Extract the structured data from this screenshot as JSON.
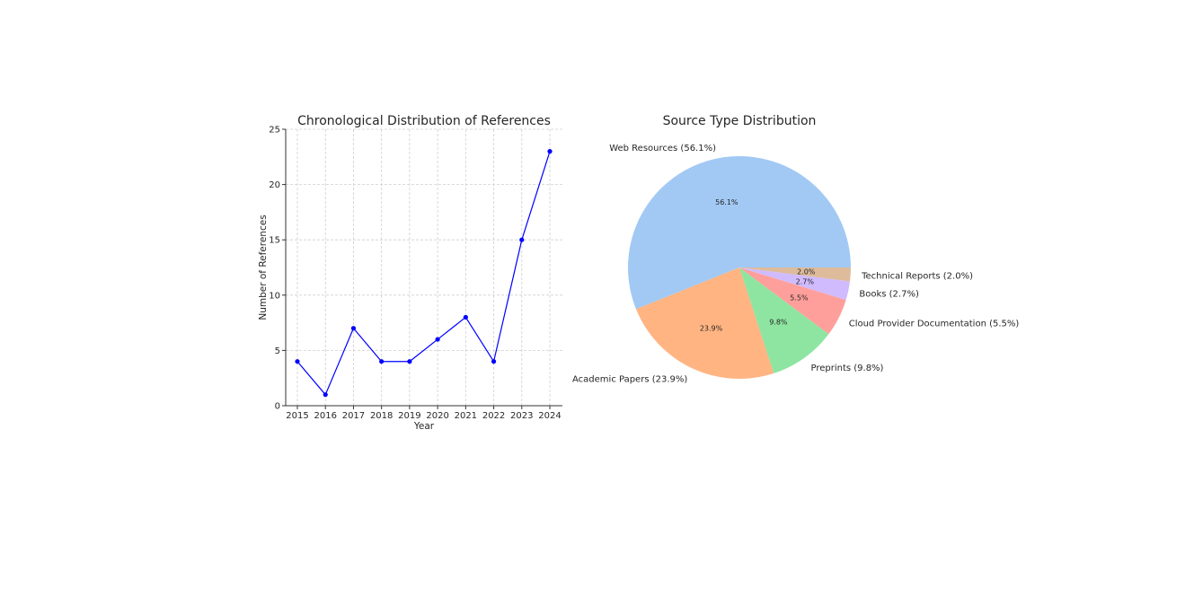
{
  "chart_data": [
    {
      "type": "line",
      "title": "Chronological Distribution of References",
      "xlabel": "Year",
      "ylabel": "Number of References",
      "x": [
        "2015",
        "2016",
        "2017",
        "2018",
        "2019",
        "2020",
        "2021",
        "2022",
        "2023",
        "2024"
      ],
      "series": [
        {
          "values": [
            4,
            1,
            7,
            4,
            4,
            6,
            8,
            4,
            15,
            23
          ]
        }
      ],
      "ylim": [
        0,
        25
      ],
      "yticks": [
        "0",
        "5",
        "10",
        "15",
        "20",
        "25"
      ],
      "grid": true,
      "color": "#0000ff"
    },
    {
      "type": "pie",
      "title": "Source Type Distribution",
      "slices": [
        {
          "label": "Web Resources (56.1%)",
          "pct_label": "56.1%",
          "value": 56.1,
          "color": "#a1c9f4"
        },
        {
          "label": "Academic Papers (23.9%)",
          "pct_label": "23.9%",
          "value": 23.9,
          "color": "#ffb482"
        },
        {
          "label": "Preprints (9.8%)",
          "pct_label": "9.8%",
          "value": 9.8,
          "color": "#8de5a1"
        },
        {
          "label": "Cloud Provider Documentation (5.5%)",
          "pct_label": "5.5%",
          "value": 5.5,
          "color": "#ff9f9b"
        },
        {
          "label": "Books (2.7%)",
          "pct_label": "2.7%",
          "value": 2.7,
          "color": "#d0bbff"
        },
        {
          "label": "Technical Reports (2.0%)",
          "pct_label": "2.0%",
          "value": 2.0,
          "color": "#debb9b"
        }
      ],
      "start": "right",
      "direction": "counterclockwise"
    }
  ]
}
